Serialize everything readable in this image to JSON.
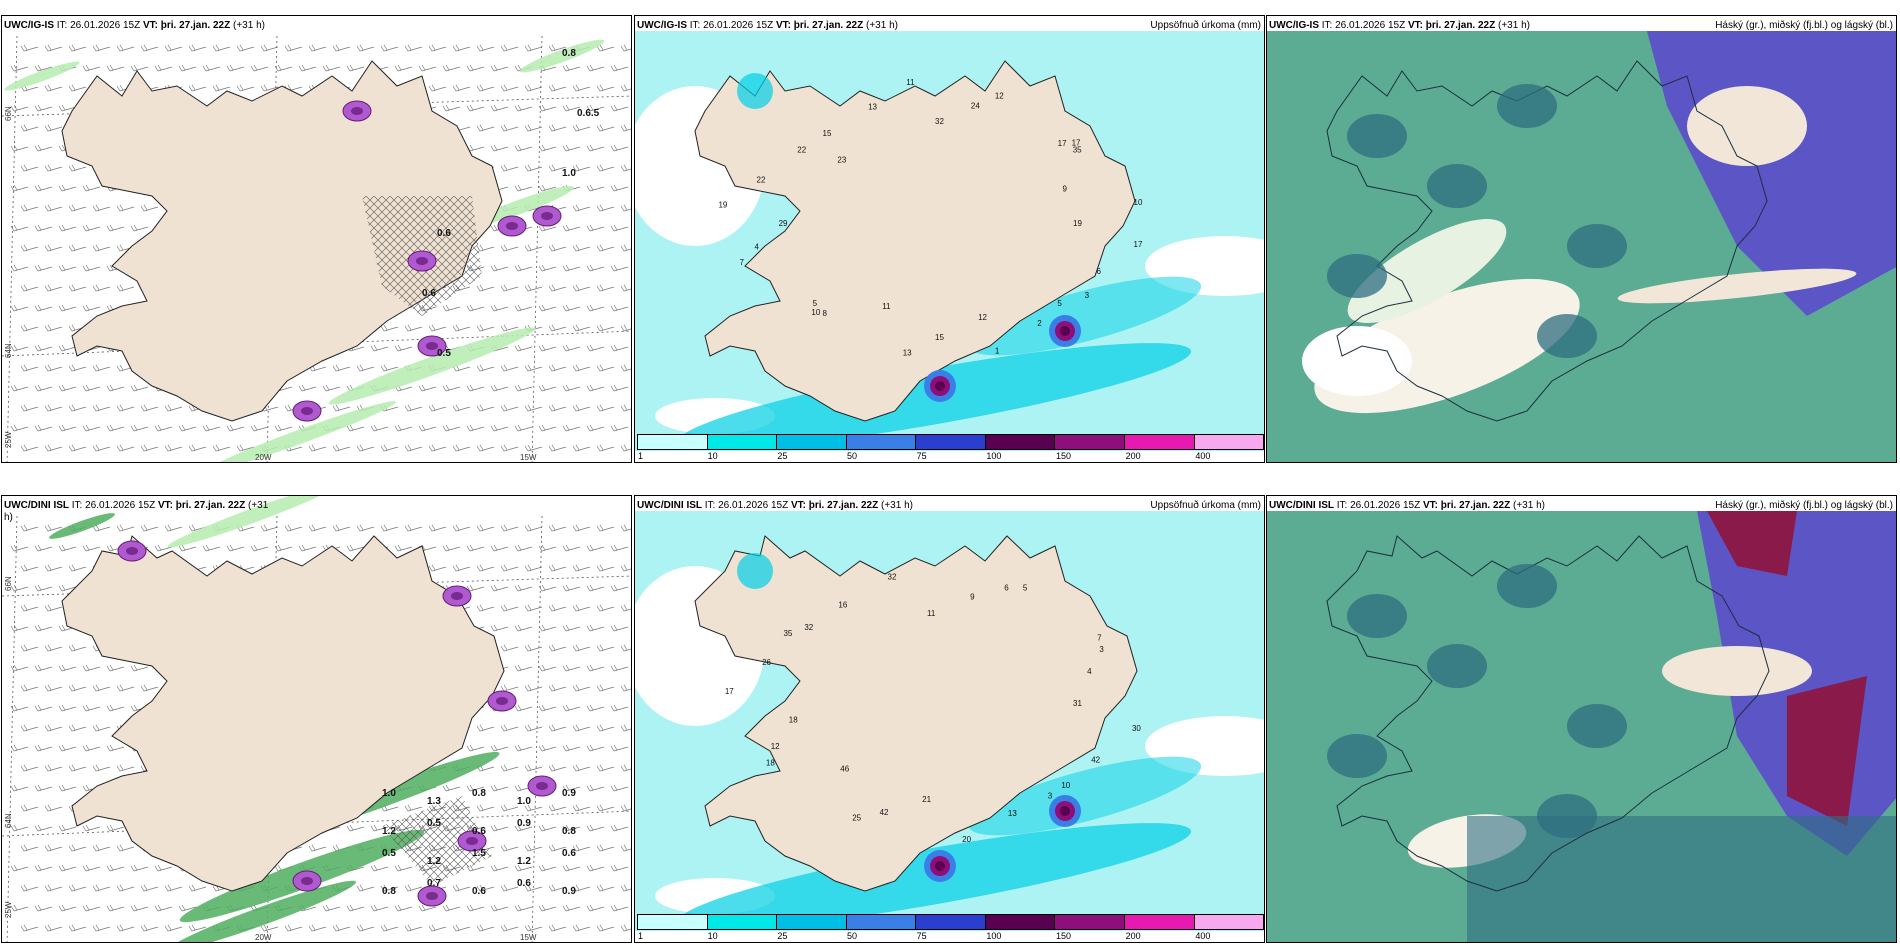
{
  "rows": [
    {
      "left": {
        "model": "UWC/IG-IS",
        "it_label": "IT:",
        "it": "26.01.2026 15Z",
        "vt_label": "VT:",
        "vt": "þri. 27.jan. 22Z",
        "lead": "(+31 h)"
      },
      "middle": {
        "model": "UWC/IG-IS",
        "it_label": "IT:",
        "it": "26.01.2026 15Z",
        "vt_label": "VT:",
        "vt": "þri. 27.jan. 22Z",
        "lead": "(+31 h)",
        "right": "Uppsöfnuð úrkoma (mm)"
      },
      "right": {
        "model": "UWC/IG-IS",
        "it_label": "IT:",
        "it": "26.01.2026 15Z",
        "vt_label": "VT:",
        "vt": "þri. 27.jan. 22Z",
        "lead": "(+31 h)",
        "right": "Háský (gr.), miðský (fj.bl.) og lágský (bl.)"
      },
      "precip_labels": [
        "19",
        "17",
        "6",
        "5",
        "3",
        "2",
        "1",
        "12",
        "15",
        "13",
        "11",
        "8",
        "10",
        "5",
        "7",
        "4",
        "29",
        "19",
        "22",
        "22",
        "23",
        "15",
        "13",
        "11",
        "32",
        "24",
        "12",
        "17",
        "17",
        "35",
        "9",
        "10"
      ],
      "wind_labels": [
        "0.8",
        "0.6.5",
        "1.0",
        "0.6",
        "0.6",
        "0.5"
      ]
    },
    {
      "left": {
        "model": "UWC/DINI ISL",
        "it_label": "IT:",
        "it": "26.01.2026 15Z",
        "vt_label": "VT:",
        "vt": "þri. 27.jan. 22Z",
        "lead": "(+31 h)"
      },
      "middle": {
        "model": "UWC/DINI ISL",
        "it_label": "IT:",
        "it": "26.01.2026 15Z",
        "vt_label": "VT:",
        "vt": "þri. 27.jan. 22Z",
        "lead": "(+31 h)",
        "right": "Uppsöfnuð úrkoma (mm)"
      },
      "right": {
        "model": "UWC/DINI ISL",
        "it_label": "IT:",
        "it": "26.01.2026 15Z",
        "vt_label": "VT:",
        "vt": "þri. 27.jan. 22Z",
        "lead": "(+31 h)",
        "right": "Háský (gr.), miðský (fj.bl.) og lágský (bl.)"
      },
      "precip_labels": [
        "31",
        "30",
        "42",
        "3",
        "10",
        "13",
        "20",
        "21",
        "42",
        "25",
        "46",
        "18",
        "12",
        "18",
        "17",
        "26",
        "32",
        "35",
        "16",
        "32",
        "11",
        "9",
        "6",
        "5",
        "7",
        "3",
        "4"
      ],
      "wind_labels": [
        "1.0",
        "1.3",
        "0.8",
        "1.0",
        "0.9",
        "1.2",
        "0.5",
        "0.6",
        "0.9",
        "0.8",
        "0.5",
        "1.2",
        "1.5",
        "1.2",
        "0.6",
        "0.8",
        "0.7",
        "0.6",
        "0.6",
        "0.9"
      ]
    }
  ],
  "axes": {
    "lat_66": "66N",
    "lat_64": "64N",
    "lon_25": "25W",
    "lon_20": "20W",
    "lon_15": "15W"
  },
  "colorbar": {
    "labels": [
      "1",
      "10",
      "25",
      "50",
      "75",
      "100",
      "150",
      "200",
      "400"
    ],
    "colors": [
      "#c8ffff",
      "#00e8e8",
      "#00bfe6",
      "#3a7fe6",
      "#2a3fcf",
      "#5a0050",
      "#8e0e7a",
      "#e619b0",
      "#f7a8ef"
    ]
  },
  "colors": {
    "land": "#f0e2d2",
    "sea_precip": "#aef3f3",
    "cloud_green": "#5cab93",
    "cloud_dark": "#2e6e80",
    "cloud_blue": "#5b55c5",
    "cloud_red": "#8a1a4a"
  }
}
